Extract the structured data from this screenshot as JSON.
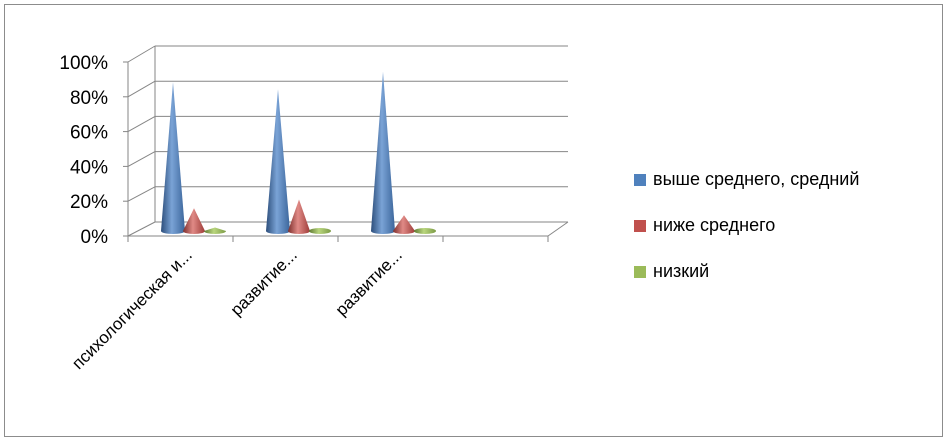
{
  "chart_data": {
    "type": "bar",
    "style": "3d-cone",
    "categories": [
      "психологическая и...",
      "развитие...",
      "развитие..."
    ],
    "series": [
      {
        "name": "выше среднего, средний",
        "values": [
          0.85,
          0.81,
          0.91
        ],
        "color": "#4f81bd"
      },
      {
        "name": "ниже среднего",
        "values": [
          0.13,
          0.18,
          0.09
        ],
        "color": "#c0504d"
      },
      {
        "name": "низкий",
        "values": [
          0.02,
          0.01,
          0.0
        ],
        "color": "#9bbb59"
      }
    ],
    "ylim": [
      0,
      1
    ],
    "yticks": [
      "0%",
      "20%",
      "40%",
      "60%",
      "80%",
      "100%"
    ],
    "grid": true,
    "legend_position": "right"
  }
}
